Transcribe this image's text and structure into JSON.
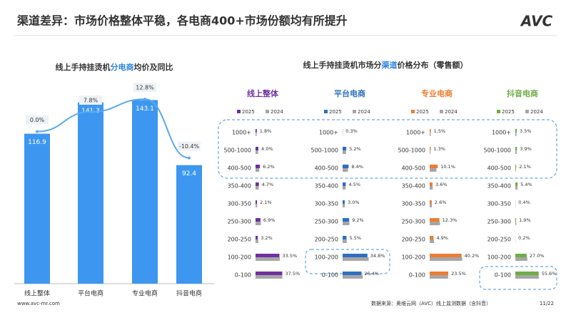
{
  "header": {
    "title": "渠道差异：市场价格整体平稳，各电商400+市场份额均有所提升",
    "logo": "AVC"
  },
  "chart_data": [
    {
      "type": "bar_line",
      "title_segments": [
        {
          "text": "线上手持挂烫机",
          "color": "#333333"
        },
        {
          "text": "分电商",
          "color": "#2e86de"
        },
        {
          "text": "均价及同比",
          "color": "#333333"
        }
      ],
      "categories": [
        "线上整体",
        "平台电商",
        "专业电商",
        "抖音电商"
      ],
      "series": [
        {
          "name": "均价",
          "color": "#3d97f0",
          "values": [
            116.9,
            141.3,
            143.1,
            92.4
          ]
        },
        {
          "name": "同比",
          "color": "#5aa9ee",
          "axis": "y2",
          "values": [
            0.0,
            7.8,
            12.8,
            -10.4
          ],
          "value_labels": [
            "0.0%",
            "7.8%",
            "12.8%",
            "-10.4%"
          ]
        }
      ],
      "ylim": [
        0,
        160
      ],
      "y2lim": [
        -60,
        21
      ]
    },
    {
      "type": "barh_panels",
      "title_segments": [
        {
          "text": "线上手持挂烫机市场分",
          "color": "#333333"
        },
        {
          "text": "渠道",
          "color": "#2e86de"
        },
        {
          "text": "价格分布（零售额）",
          "color": "#333333"
        }
      ],
      "categories": [
        "1000+",
        "500-1000",
        "400-500",
        "350-400",
        "300-350",
        "250-300",
        "200-250",
        "100-200",
        "0-100"
      ],
      "panels": [
        {
          "name": "线上整体",
          "xlim": [
            0,
            100
          ],
          "series": [
            {
              "name": "2025",
              "color": "#7030a0",
              "values": [
                1.8,
                4.0,
                6.2,
                4.7,
                2.1,
                6.9,
                3.2,
                33.5,
                37.5
              ],
              "value_labels": [
                "1.8%",
                "4.0%",
                "6.2%",
                "4.7%",
                "2.1%",
                "6.9%",
                "3.2%",
                "33.5%",
                "37.5%"
              ]
            },
            {
              "name": "2024",
              "color": "#a6a6a6",
              "values": [
                1.5,
                3.6,
                5.2,
                4.5,
                2.3,
                7.5,
                3.8,
                34.0,
                37.6
              ]
            }
          ]
        },
        {
          "name": "平台电商",
          "xlim": [
            0,
            100
          ],
          "series": [
            {
              "name": "2025",
              "color": "#2e6ec4",
              "values": [
                0.3,
                5.2,
                8.4,
                4.5,
                3.0,
                9.2,
                5.5,
                34.8,
                26.4
              ],
              "value_labels": [
                "0.3%",
                "5.2%",
                "8.4%",
                "4.5%",
                "3.0%",
                "9.2%",
                "5.5%",
                "34.8%",
                "26.4%"
              ]
            },
            {
              "name": "2024",
              "color": "#a6a6a6",
              "values": [
                0.3,
                4.8,
                7.5,
                4.2,
                3.2,
                9.5,
                5.8,
                36.5,
                28.2
              ]
            }
          ]
        },
        {
          "name": "专业电商",
          "xlim": [
            0,
            90
          ],
          "series": [
            {
              "name": "2025",
              "color": "#ed7d31",
              "values": [
                1.5,
                1.3,
                10.1,
                3.6,
                2.6,
                12.3,
                4.9,
                40.2,
                23.5
              ],
              "value_labels": [
                "1.5%",
                "1.3%",
                "10.1%",
                "3.6%",
                "2.6%",
                "12.3%",
                "4.9%",
                "40.2%",
                "23.5%"
              ]
            },
            {
              "name": "2024",
              "color": "#a6a6a6",
              "values": [
                1.2,
                1.0,
                8.5,
                3.8,
                2.8,
                13.0,
                5.5,
                41.0,
                23.2
              ]
            }
          ]
        },
        {
          "name": "抖音电商",
          "xlim": [
            0,
            170
          ],
          "series": [
            {
              "name": "2025",
              "color": "#70ad47",
              "values": [
                3.5,
                3.9,
                2.1,
                5.4,
                0.4,
                1.9,
                0.2,
                27.0,
                55.6
              ],
              "value_labels": [
                "3.5%",
                "3.9%",
                "2.1%",
                "5.4%",
                "0.4%",
                "1.9%",
                "0.2%",
                "27.0%",
                "55.6%"
              ]
            },
            {
              "name": "2024",
              "color": "#a6a6a6",
              "values": [
                2.8,
                3.2,
                1.6,
                5.0,
                0.5,
                2.2,
                0.4,
                28.5,
                55.8
              ]
            }
          ]
        }
      ]
    }
  ],
  "footer": {
    "website": "www.avc-mr.com",
    "source": "数据来源：奥维云网（AVC）线上监测数据（含抖音）",
    "page": "11/22"
  }
}
